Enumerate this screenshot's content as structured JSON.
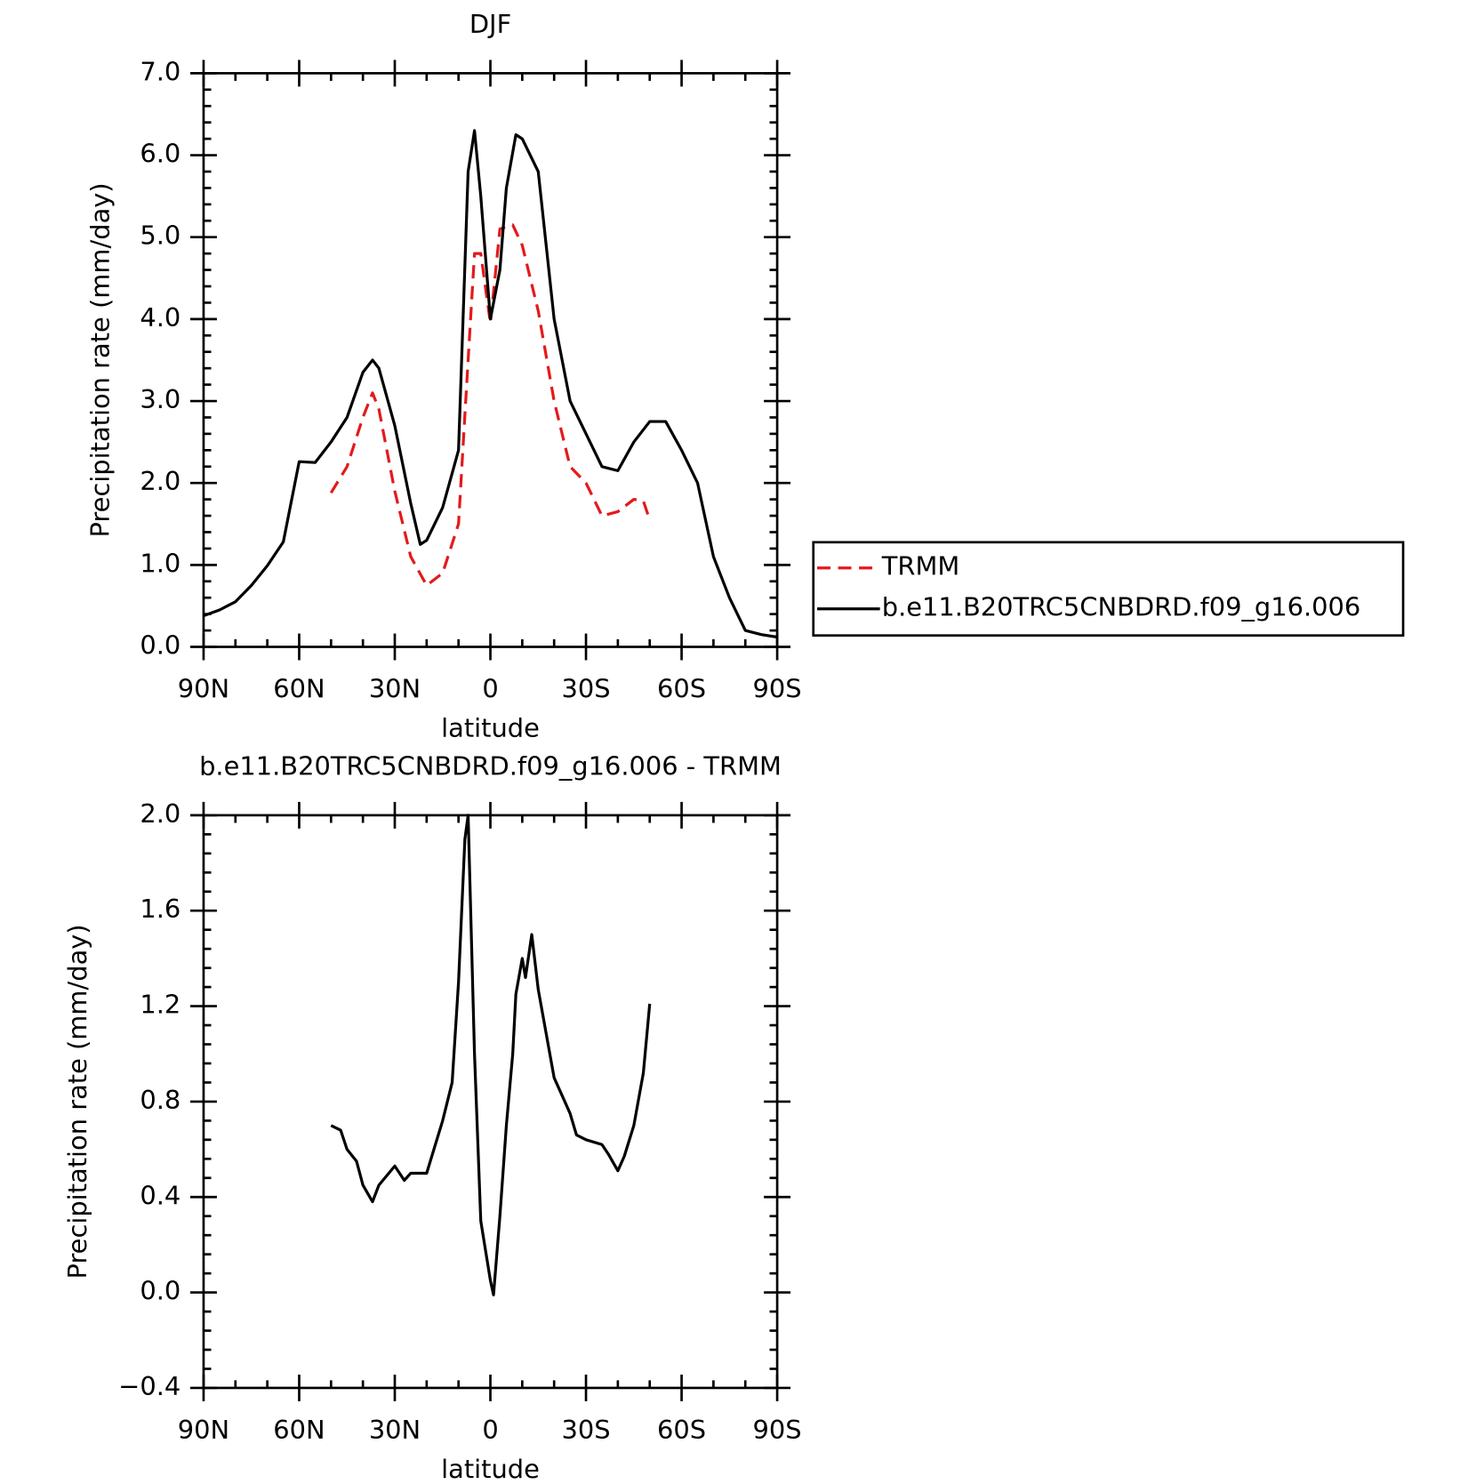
{
  "chart_data": [
    {
      "type": "line",
      "title": "DJF",
      "x_label": "latitude",
      "y_label": "Precipitation rate (mm/day)",
      "xlim": [
        90,
        -90
      ],
      "xticks": [
        {
          "value": 90,
          "label": "90N"
        },
        {
          "value": 60,
          "label": "60N"
        },
        {
          "value": 30,
          "label": "30N"
        },
        0,
        {
          "value": -30,
          "label": "30S"
        },
        {
          "value": -60,
          "label": "60S"
        },
        {
          "value": -90,
          "label": "90S"
        }
      ],
      "ylim": [
        0,
        7
      ],
      "yticks": [
        {
          "value": 0,
          "label": "0.0"
        },
        {
          "value": 1,
          "label": "1.0"
        },
        {
          "value": 2,
          "label": "2.0"
        },
        {
          "value": 3,
          "label": "3.0"
        },
        {
          "value": 4,
          "label": "4.0"
        },
        {
          "value": 5,
          "label": "5.0"
        },
        {
          "value": 6,
          "label": "6.0"
        },
        {
          "value": 7,
          "label": "7.0"
        }
      ],
      "legend": "right",
      "series": [
        {
          "name": "TRMM",
          "color": "#e31a1c",
          "line_style": "dashed",
          "x": [
            50,
            45,
            40,
            37,
            35,
            30,
            25,
            20,
            15,
            10,
            7,
            5,
            3,
            0,
            -3,
            -7,
            -10,
            -15,
            -20,
            -25,
            -30,
            -35,
            -40,
            -45,
            -48,
            -50
          ],
          "values": [
            1.88,
            2.2,
            2.8,
            3.1,
            2.9,
            1.9,
            1.1,
            0.75,
            0.9,
            1.5,
            3.5,
            4.8,
            4.8,
            3.95,
            5.1,
            5.15,
            4.9,
            4.1,
            3.0,
            2.2,
            2.0,
            1.6,
            1.65,
            1.8,
            1.78,
            1.55
          ]
        },
        {
          "name": "b.e11.B20TRC5CNBDRD.f09_g16.006",
          "color": "#000000",
          "line_style": "solid",
          "x": [
            90,
            85,
            80,
            75,
            70,
            65,
            60,
            55,
            50,
            45,
            40,
            37,
            35,
            30,
            25,
            22,
            20,
            15,
            10,
            7,
            5,
            3,
            0,
            -3,
            -5,
            -8,
            -10,
            -15,
            -20,
            -25,
            -30,
            -35,
            -40,
            -45,
            -50,
            -55,
            -60,
            -65,
            -70,
            -75,
            -80,
            -85,
            -90
          ],
          "values": [
            0.38,
            0.45,
            0.55,
            0.75,
            0.99,
            1.28,
            2.26,
            2.25,
            2.5,
            2.8,
            3.35,
            3.5,
            3.4,
            2.7,
            1.75,
            1.25,
            1.3,
            1.7,
            2.4,
            5.8,
            6.3,
            5.5,
            4.0,
            4.6,
            5.6,
            6.25,
            6.2,
            5.8,
            4.0,
            3.0,
            2.6,
            2.2,
            2.15,
            2.5,
            2.75,
            2.75,
            2.4,
            2.0,
            1.1,
            0.6,
            0.2,
            0.15,
            0.12
          ]
        }
      ]
    },
    {
      "type": "line",
      "title": "b.e11.B20TRC5CNBDRD.f09_g16.006 - TRMM",
      "x_label": "latitude",
      "y_label": "Precipitation rate (mm/day)",
      "xlim": [
        90,
        -90
      ],
      "xticks": [
        {
          "value": 90,
          "label": "90N"
        },
        {
          "value": 60,
          "label": "60N"
        },
        {
          "value": 30,
          "label": "30N"
        },
        0,
        {
          "value": -30,
          "label": "30S"
        },
        {
          "value": -60,
          "label": "60S"
        },
        {
          "value": -90,
          "label": "90S"
        }
      ],
      "ylim": [
        -0.4,
        2.0
      ],
      "yticks": [
        {
          "value": -0.4,
          "label": "−0.4"
        },
        {
          "value": 0,
          "label": "0.0"
        },
        0.4,
        0.8,
        1.2,
        1.6,
        {
          "value": 2,
          "label": "2.0"
        }
      ],
      "series": [
        {
          "color": "#000000",
          "line_style": "solid",
          "x": [
            50,
            47,
            45,
            42,
            40,
            37,
            35,
            30,
            27,
            25,
            20,
            15,
            12,
            10,
            8,
            7,
            5,
            3,
            0,
            -1,
            -3,
            -5,
            -7,
            -8,
            -10,
            -11,
            -13,
            -15,
            -20,
            -25,
            -27,
            -30,
            -35,
            -37,
            -40,
            -42,
            -45,
            -48,
            -50
          ],
          "values": [
            0.7,
            0.68,
            0.6,
            0.55,
            0.45,
            0.38,
            0.45,
            0.53,
            0.47,
            0.5,
            0.5,
            0.72,
            0.88,
            1.3,
            1.9,
            2.0,
            1.0,
            0.3,
            0.05,
            -0.01,
            0.32,
            0.7,
            1.0,
            1.25,
            1.4,
            1.32,
            1.5,
            1.27,
            0.9,
            0.75,
            0.66,
            0.64,
            0.62,
            0.58,
            0.51,
            0.57,
            0.7,
            0.92,
            1.21
          ]
        }
      ]
    }
  ]
}
